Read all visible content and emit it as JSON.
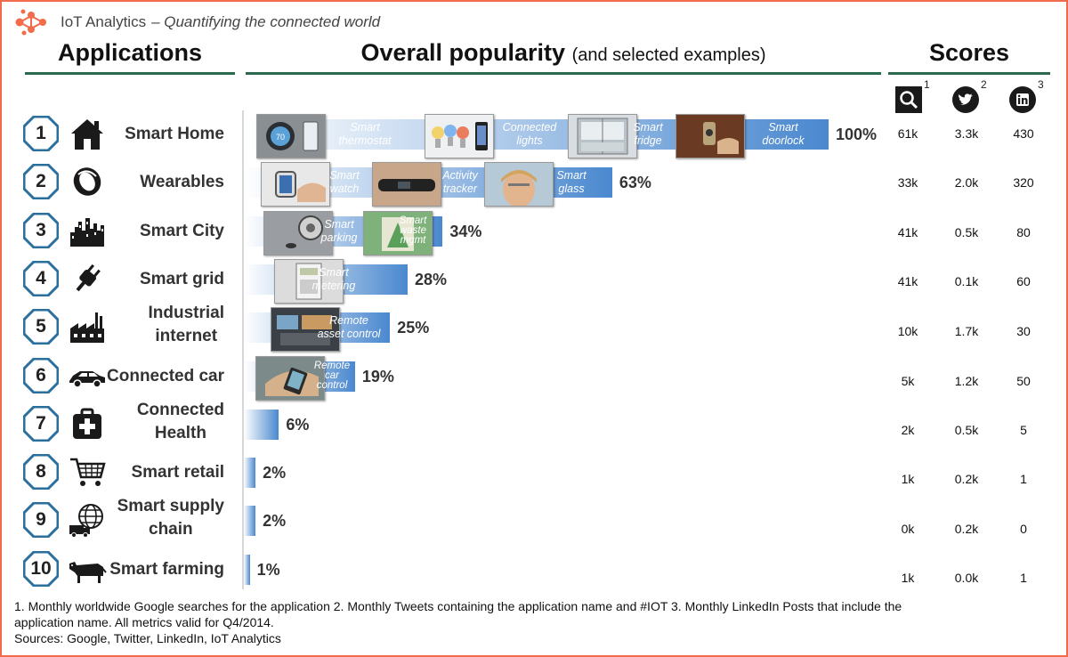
{
  "header": {
    "brand_name": "IoT Analytics",
    "brand_tagline": "– Quantifying the connected world",
    "applications_title": "Applications",
    "popularity_title": "Overall popularity",
    "popularity_subtitle": "(and selected examples)",
    "scores_title": "Scores",
    "score_columns": [
      {
        "icon": "search-icon",
        "sup": "1"
      },
      {
        "icon": "twitter-icon",
        "sup": "2"
      },
      {
        "icon": "linkedin-icon",
        "sup": "3"
      }
    ]
  },
  "colors": {
    "accent": "#f26b4a",
    "rule": "#2a6b4e",
    "bar_start": "#ffffff",
    "bar_end": "#4a88cf",
    "badge": "#2a6f9e"
  },
  "chart_data": {
    "type": "bar",
    "orientation": "horizontal",
    "categories": [
      "Smart Home",
      "Wearables",
      "Smart City",
      "Smart grid",
      "Industrial internet",
      "Connected car",
      "Connected Health",
      "Smart retail",
      "Smart supply chain",
      "Smart farming"
    ],
    "values": [
      100,
      63,
      34,
      28,
      25,
      19,
      6,
      2,
      2,
      1
    ],
    "value_labels": [
      "100%",
      "63%",
      "34%",
      "28%",
      "25%",
      "19%",
      "6%",
      "2%",
      "2%",
      "1%"
    ],
    "title": "Overall popularity",
    "xlim": [
      0,
      100
    ]
  },
  "rows": [
    {
      "rank": "1",
      "label_lines": [
        "Smart Home"
      ],
      "icon": "house-icon",
      "examples": [
        {
          "text": "Smart thermostat",
          "lines": [
            "Smart",
            "thermostat"
          ],
          "thumb": "thermostat"
        },
        {
          "text": "Connected lights",
          "lines": [
            "Connected",
            "lights"
          ],
          "thumb": "bulbs"
        },
        {
          "text": "Smart fridge",
          "lines": [
            "Smart",
            "fridge"
          ],
          "thumb": "fridge"
        },
        {
          "text": "Smart doorlock",
          "lines": [
            "Smart",
            "doorlock"
          ],
          "thumb": "doorlock"
        }
      ],
      "scores": [
        "61k",
        "3.3k",
        "430"
      ]
    },
    {
      "rank": "2",
      "label_lines": [
        "Wearables"
      ],
      "icon": "wristband-icon",
      "examples": [
        {
          "text": "Smart watch",
          "lines": [
            "Smart",
            "watch"
          ],
          "thumb": "watch"
        },
        {
          "text": "Activity tracker",
          "lines": [
            "Activity",
            "tracker"
          ],
          "thumb": "tracker"
        },
        {
          "text": "Smart glass",
          "lines": [
            "Smart",
            "glass"
          ],
          "thumb": "glass"
        }
      ],
      "scores": [
        "33k",
        "2.0k",
        "320"
      ]
    },
    {
      "rank": "3",
      "label_lines": [
        "Smart City"
      ],
      "icon": "city-icon",
      "examples": [
        {
          "text": "Smart parking",
          "lines": [
            "Smart",
            "parking"
          ],
          "thumb": "parking"
        },
        {
          "text": "Smart waste mgmt",
          "lines": [
            "Smart",
            "waste",
            "mgmt"
          ],
          "thumb": "waste"
        }
      ],
      "scores": [
        "41k",
        "0.5k",
        "80"
      ]
    },
    {
      "rank": "4",
      "label_lines": [
        "Smart grid"
      ],
      "icon": "plug-icon",
      "examples": [
        {
          "text": "Smart metering",
          "lines": [
            "Smart",
            "metering"
          ],
          "thumb": "meter"
        }
      ],
      "scores": [
        "41k",
        "0.1k",
        "60"
      ]
    },
    {
      "rank": "5",
      "label_lines": [
        "Industrial",
        "internet"
      ],
      "icon": "factory-icon",
      "examples": [
        {
          "text": "Remote asset control",
          "lines": [
            "Remote",
            "asset control"
          ],
          "thumb": "asset"
        }
      ],
      "scores": [
        "10k",
        "1.7k",
        "30"
      ]
    },
    {
      "rank": "6",
      "label_lines": [
        "Connected car"
      ],
      "icon": "car-icon",
      "examples": [
        {
          "text": "Remote car control",
          "lines": [
            "Remote",
            "car",
            "control"
          ],
          "thumb": "carctl"
        }
      ],
      "scores": [
        "5k",
        "1.2k",
        "50"
      ]
    },
    {
      "rank": "7",
      "label_lines": [
        "Connected",
        "Health"
      ],
      "icon": "medkit-icon",
      "examples": [],
      "scores": [
        "2k",
        "0.5k",
        "5"
      ]
    },
    {
      "rank": "8",
      "label_lines": [
        "Smart retail"
      ],
      "icon": "cart-icon",
      "examples": [],
      "scores": [
        "1k",
        "0.2k",
        "1"
      ]
    },
    {
      "rank": "9",
      "label_lines": [
        "Smart supply",
        "chain"
      ],
      "icon": "globe-truck-icon",
      "examples": [],
      "scores": [
        "0k",
        "0.2k",
        "0"
      ]
    },
    {
      "rank": "10",
      "label_lines": [
        "Smart farming"
      ],
      "icon": "cow-icon",
      "examples": [],
      "scores": [
        "1k",
        "0.0k",
        "1"
      ]
    }
  ],
  "footnote": {
    "line1": "1. Monthly worldwide Google searches for the application  2. Monthly Tweets containing the application name and #IOT  3. Monthly LinkedIn Posts that include the",
    "line2": "application name.  All metrics valid for Q4/2014.",
    "line3": "Sources: Google, Twitter, LinkedIn, IoT Analytics"
  }
}
